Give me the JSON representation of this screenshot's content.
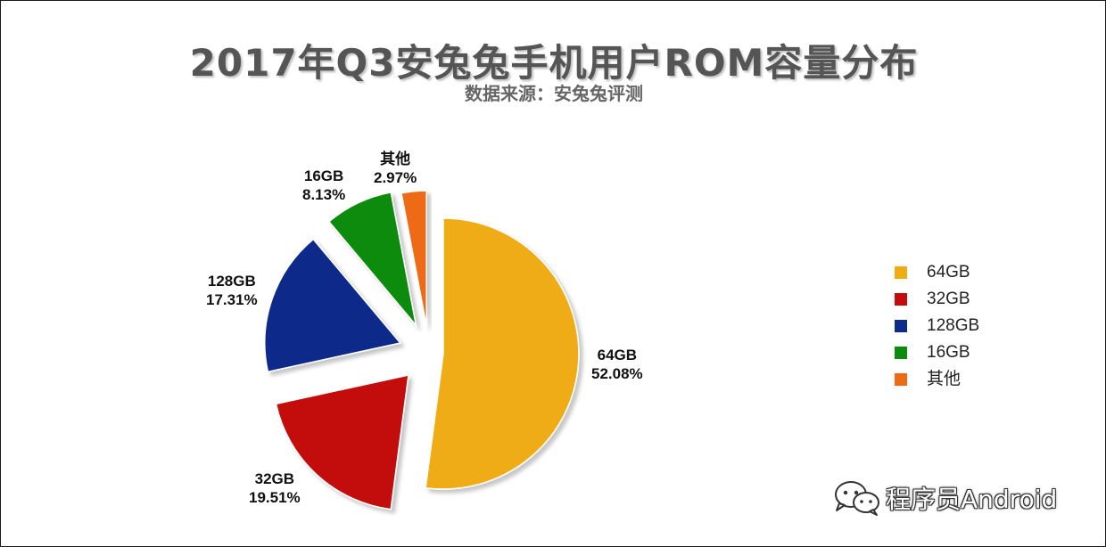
{
  "chart_data": {
    "type": "pie",
    "title": "2017年Q3安兔兔手机用户ROM容量分布",
    "subtitle": "数据来源：安兔兔评测",
    "series": [
      {
        "name": "64GB",
        "value": 52.08,
        "label": "52.08%",
        "color": "#f0ac12"
      },
      {
        "name": "32GB",
        "value": 19.51,
        "label": "19.51%",
        "color": "#c30d0d"
      },
      {
        "name": "128GB",
        "value": 17.31,
        "label": "17.31%",
        "color": "#0b2c8b"
      },
      {
        "name": "16GB",
        "value": 8.13,
        "label": "8.13%",
        "color": "#0d8b0d"
      },
      {
        "name": "其他",
        "value": 2.97,
        "label": "2.97%",
        "color": "#ee6a15"
      }
    ],
    "legend_position": "right",
    "exploded": true
  },
  "watermark": {
    "text": "程序员Android",
    "icon": "wechat-icon"
  }
}
